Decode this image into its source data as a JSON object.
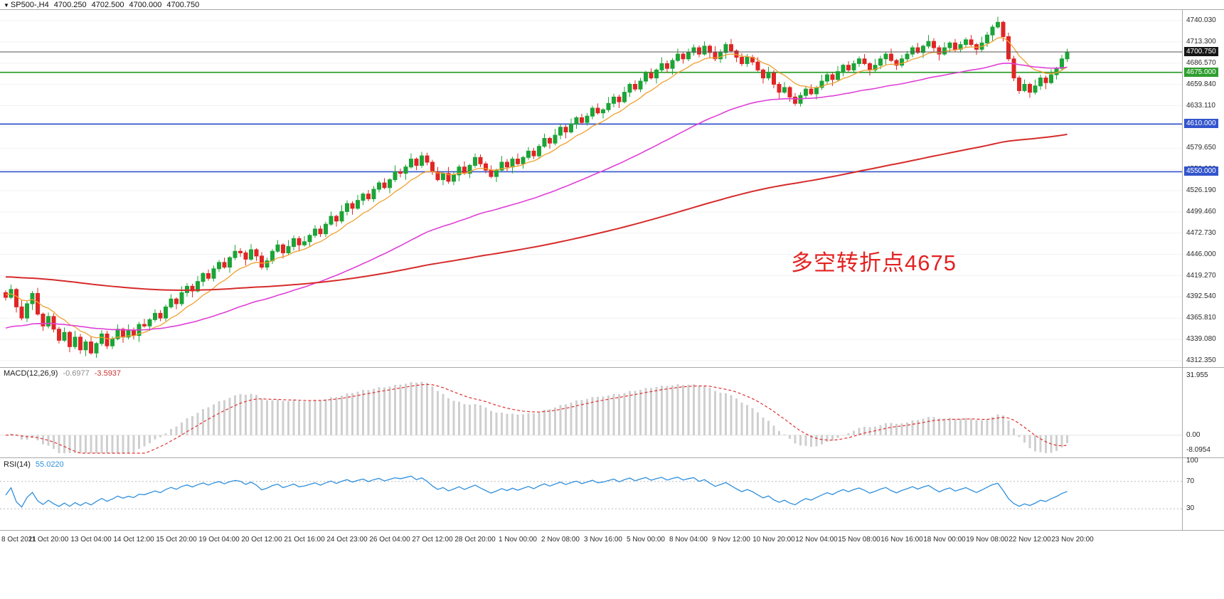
{
  "header": {
    "marker": "▼",
    "symbol": "SP500-,H4",
    "open": "4700.250",
    "high": "4702.500",
    "low": "4700.000",
    "close": "4700.750"
  },
  "annotation": {
    "text": "多空转折点4675",
    "color": "#e32222"
  },
  "price_axis": {
    "labels": [
      "4740.030",
      "4713.300",
      "4686.570",
      "4659.840",
      "4633.110",
      "4606.380",
      "4579.650",
      "4552.920",
      "4526.190",
      "4499.460",
      "4472.730",
      "4446.000",
      "4419.270",
      "4392.540",
      "4365.810",
      "4339.080",
      "4312.350"
    ]
  },
  "levels": [
    {
      "price": 4675.0,
      "label": "4675.000",
      "color": "#2f9e2f"
    },
    {
      "price": 4610.0,
      "label": "4610.000",
      "color": "#3354cc"
    },
    {
      "price": 4550.0,
      "label": "4550.000",
      "color": "#3354cc"
    }
  ],
  "current_price": {
    "value": 4700.75,
    "label": "4700.750",
    "line_color": "#555555",
    "badge_bg": "#161616"
  },
  "chart_data": {
    "type": "candlestick",
    "symbol": "SP500-",
    "timeframe": "H4",
    "ylim": [
      4308.8,
      4754.4
    ],
    "grid": "horizontal-only",
    "x_labels": [
      "8 Oct 2021",
      "11 Oct 20:00",
      "13 Oct 04:00",
      "14 Oct 12:00",
      "15 Oct 20:00",
      "19 Oct 04:00",
      "20 Oct 12:00",
      "21 Oct 16:00",
      "24 Oct 23:00",
      "26 Oct 04:00",
      "27 Oct 12:00",
      "28 Oct 20:00",
      "1 Nov 00:00",
      "2 Nov 08:00",
      "3 Nov 16:00",
      "5 Nov 00:00",
      "8 Nov 04:00",
      "9 Nov 12:00",
      "10 Nov 20:00",
      "12 Nov 04:00",
      "15 Nov 08:00",
      "16 Nov 16:00",
      "18 Nov 00:00",
      "19 Nov 08:00",
      "22 Nov 12:00",
      "23 Nov 20:00"
    ],
    "candles": {
      "first_open": 4398,
      "closes": [
        4392,
        4402,
        4380,
        4366,
        4384,
        4397,
        4371,
        4356,
        4368,
        4352,
        4338,
        4348,
        4330,
        4342,
        4326,
        4336,
        4322,
        4334,
        4346,
        4331,
        4340,
        4352,
        4342,
        4350,
        4344,
        4358,
        4356,
        4364,
        4372,
        4366,
        4380,
        4390,
        4384,
        4398,
        4406,
        4400,
        4412,
        4422,
        4416,
        4428,
        4436,
        4430,
        4442,
        4450,
        4448,
        4440,
        4452,
        4444,
        4430,
        4438,
        4450,
        4458,
        4448,
        4456,
        4466,
        4458,
        4462,
        4470,
        4478,
        4472,
        4484,
        4494,
        4488,
        4500,
        4510,
        4504,
        4514,
        4522,
        4516,
        4528,
        4536,
        4530,
        4540,
        4550,
        4548,
        4556,
        4566,
        4558,
        4570,
        4562,
        4550,
        4540,
        4548,
        4538,
        4546,
        4556,
        4548,
        4558,
        4568,
        4560,
        4552,
        4544,
        4552,
        4562,
        4556,
        4566,
        4560,
        4568,
        4576,
        4570,
        4582,
        4592,
        4586,
        4596,
        4606,
        4600,
        4610,
        4618,
        4612,
        4620,
        4630,
        4624,
        4628,
        4636,
        4644,
        4638,
        4650,
        4660,
        4654,
        4664,
        4674,
        4668,
        4678,
        4686,
        4680,
        4690,
        4698,
        4692,
        4700,
        4706,
        4698,
        4708,
        4700,
        4692,
        4700,
        4710,
        4702,
        4694,
        4686,
        4694,
        4688,
        4678,
        4668,
        4674,
        4660,
        4650,
        4656,
        4644,
        4636,
        4646,
        4654,
        4648,
        4656,
        4664,
        4672,
        4666,
        4676,
        4684,
        4678,
        4686,
        4692,
        4686,
        4678,
        4684,
        4692,
        4698,
        4690,
        4684,
        4692,
        4698,
        4706,
        4700,
        4708,
        4714,
        4706,
        4698,
        4706,
        4712,
        4704,
        4710,
        4716,
        4710,
        4704,
        4712,
        4722,
        4732,
        4738,
        4720,
        4692,
        4668,
        4652,
        4660,
        4650,
        4658,
        4668,
        4662,
        4672,
        4680,
        4692,
        4700.75
      ],
      "wick_up": [
        3,
        6,
        2,
        8,
        4,
        3,
        7,
        2,
        5,
        4
      ],
      "wick_dn": [
        4,
        2,
        7,
        3,
        5,
        8,
        2,
        6,
        3,
        4
      ]
    },
    "colors": {
      "up": "#1ca437",
      "down": "#e02525"
    },
    "moving_averages": [
      {
        "name": "fast-ma",
        "color": "#f0a030",
        "seed": 4396,
        "alpha": 0.18,
        "width": 1.3
      },
      {
        "name": "mid-ma",
        "color": "#df3fd6",
        "seed": 4352,
        "alpha": 0.035,
        "width": 1.6
      },
      {
        "name": "slow-ma",
        "color": "#d62b2b",
        "seed": 4418,
        "alpha": 0.01,
        "width": 2.0
      }
    ],
    "indicators": [
      {
        "id": "macd",
        "title": "MACD(12,26,9)",
        "value_main": "-0.6977",
        "value_signal": "-3.5937",
        "params": {
          "fast": 12,
          "slow": 26,
          "signal": 9
        },
        "ylim": [
          -10,
          36
        ],
        "axis_labels": [
          "31.955",
          "0.00",
          "-8.0954"
        ],
        "hist_color": "#cfcfcf",
        "signal_color": "#e03030"
      },
      {
        "id": "rsi",
        "title": "RSI(14)",
        "value": "55.0220",
        "period": 14,
        "ylim": [
          0,
          100
        ],
        "levels": [
          70,
          30
        ],
        "axis_labels": [
          "100",
          "70",
          "30"
        ],
        "line_color": "#2f8fdd"
      }
    ]
  }
}
